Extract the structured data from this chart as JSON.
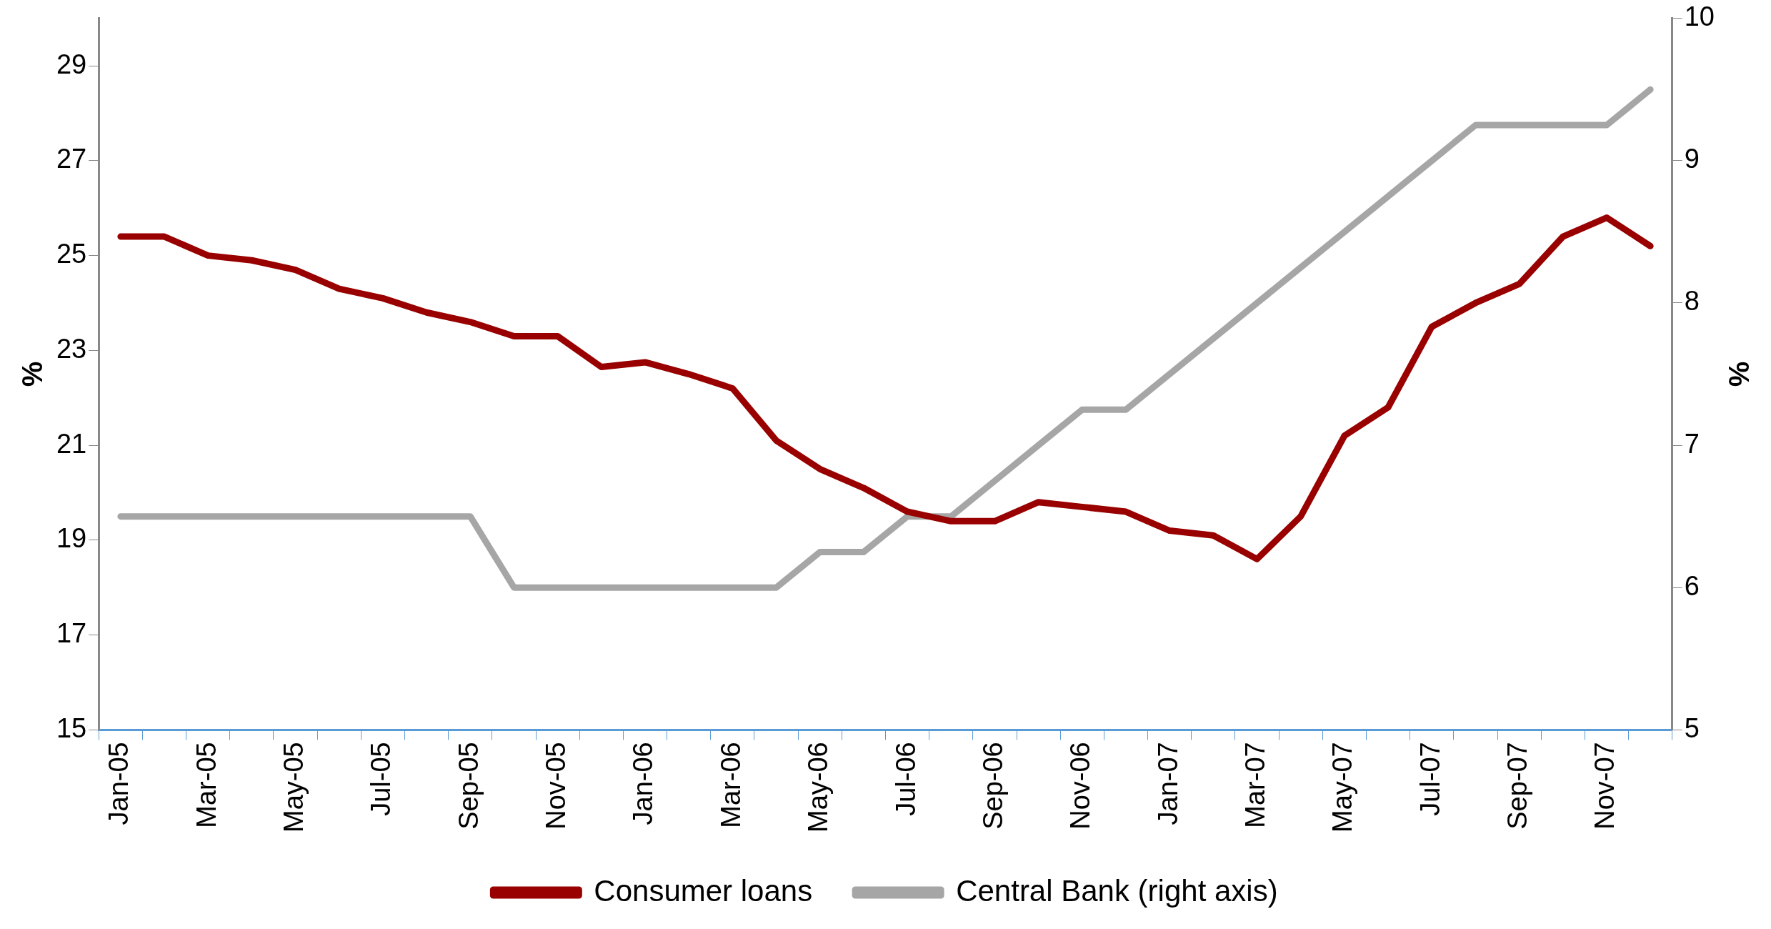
{
  "chart_data": {
    "type": "line",
    "ylabel": "%",
    "y2label": "%",
    "categories": [
      "Jan-05",
      null,
      "Mar-05",
      null,
      "May-05",
      null,
      "Jul-05",
      null,
      "Sep-05",
      null,
      "Nov-05",
      null,
      "Jan-06",
      null,
      "Mar-06",
      null,
      "May-06",
      null,
      "Jul-06",
      null,
      "Sep-06",
      null,
      "Nov-06",
      null,
      "Jan-07",
      null,
      "Mar-07",
      null,
      "May-07",
      null,
      "Jul-07",
      null,
      "Sep-07",
      null,
      "Nov-07",
      null
    ],
    "series": [
      {
        "name": "Consumer loans",
        "color": "#990000",
        "values": [
          25.4,
          25.4,
          25.0,
          24.9,
          24.7,
          24.3,
          24.1,
          23.8,
          23.6,
          23.3,
          23.3,
          22.65,
          22.75,
          22.5,
          22.2,
          21.1,
          20.5,
          20.1,
          19.6,
          19.4,
          19.4,
          19.8,
          19.7,
          19.6,
          19.2,
          19.1,
          18.6,
          19.5,
          21.2,
          21.8,
          23.5,
          24.0,
          24.4,
          25.4,
          25.8,
          25.2
        ]
      },
      {
        "name": "Central Bank (right axis)",
        "color": "#a6a6a6",
        "axis": "y2",
        "values": [
          6.5,
          6.5,
          6.5,
          6.5,
          6.5,
          6.5,
          6.5,
          6.5,
          6.5,
          6.0,
          6.0,
          6.0,
          6.0,
          6.0,
          6.0,
          6.0,
          6.25,
          6.25,
          6.5,
          6.5,
          6.75,
          7.0,
          7.25,
          7.25,
          7.5,
          7.75,
          8.0,
          8.25,
          8.5,
          8.75,
          9.0,
          9.25,
          9.25,
          9.25,
          9.25,
          9.5
        ]
      }
    ],
    "ylim": [
      15,
      30
    ],
    "yticks": [
      15,
      17,
      19,
      21,
      23,
      25,
      27,
      29
    ],
    "y2lim": [
      5,
      10
    ],
    "y2ticks": [
      5,
      6,
      7,
      8,
      9,
      10
    ],
    "legend": "bottom",
    "marker": "none",
    "line_style": "solid"
  }
}
